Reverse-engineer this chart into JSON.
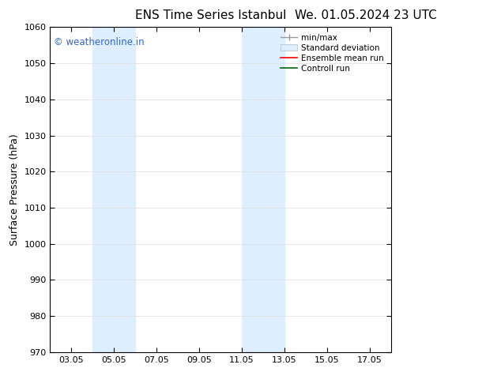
{
  "title_left": "ENS Time Series Istanbul",
  "title_right": "We. 01.05.2024 23 UTC",
  "ylabel": "Surface Pressure (hPa)",
  "ylim": [
    970,
    1060
  ],
  "yticks": [
    970,
    980,
    990,
    1000,
    1010,
    1020,
    1030,
    1040,
    1050,
    1060
  ],
  "xlim": [
    0,
    16
  ],
  "xtick_labels": [
    "03.05",
    "05.05",
    "07.05",
    "09.05",
    "11.05",
    "13.05",
    "15.05",
    "17.05"
  ],
  "xtick_positions": [
    1,
    3,
    5,
    7,
    9,
    11,
    13,
    15
  ],
  "shaded_bands": [
    {
      "x_start": 2.0,
      "x_end": 4.0,
      "color": "#ddeeff"
    },
    {
      "x_start": 9.0,
      "x_end": 11.0,
      "color": "#ddeeff"
    }
  ],
  "watermark_text": "© weatheronline.in",
  "watermark_color": "#3366cc",
  "background_color": "#ffffff",
  "title_fontsize": 11,
  "tick_fontsize": 8,
  "ylabel_fontsize": 9,
  "legend_fontsize": 7.5
}
